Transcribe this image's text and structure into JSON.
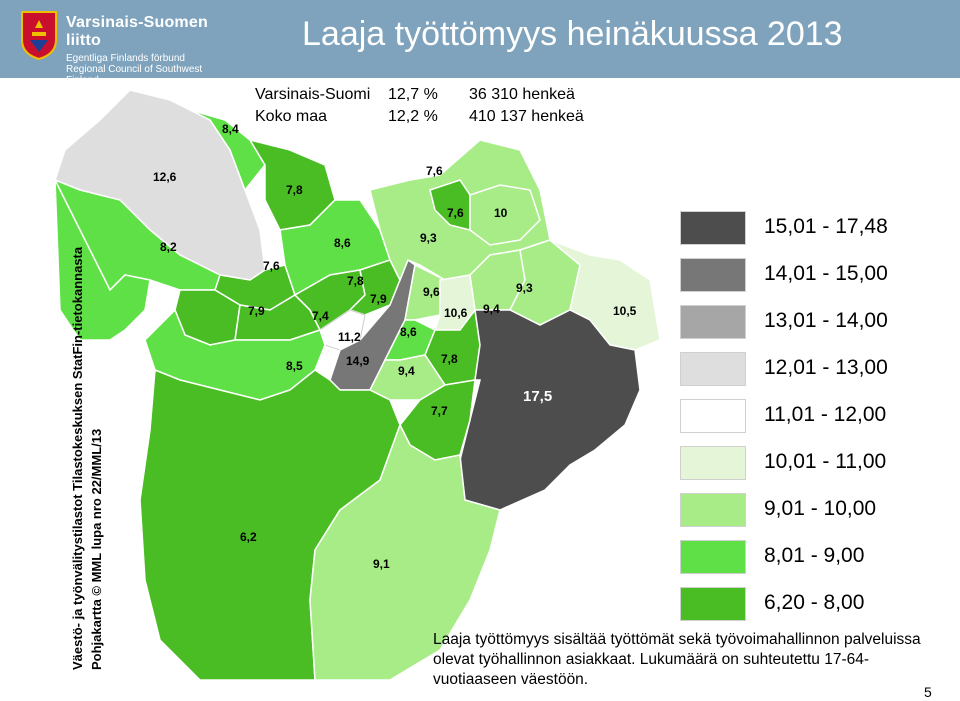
{
  "header": {
    "title": "Laaja työttömyys heinäkuussa 2013",
    "org_name": "Varsinais-Suomen liitto",
    "org_line2": "Egentliga Finlands förbund",
    "org_line3": "Regional Council of Southwest Finland"
  },
  "stats": {
    "rows": [
      {
        "area": "Varsinais-Suomi",
        "rate": "12,7 %",
        "count": "36 310",
        "unit": "henkeä"
      },
      {
        "area": "Koko maa",
        "rate": "12,2 %",
        "count": "410 137",
        "unit": "henkeä"
      }
    ]
  },
  "map": {
    "region_labels": [
      "8,4",
      "12,6",
      "7,8",
      "8,2",
      "7,6",
      "8,6",
      "7,8",
      "7,9",
      "7,9",
      "7,4",
      "11,2",
      "8,5",
      "14,9",
      "7,6",
      "7,6",
      "10",
      "9,3",
      "9,6",
      "10,6",
      "9,4",
      "9,3",
      "8,6",
      "7,8",
      "9,4",
      "10,5",
      "17,5",
      "7,7",
      "6,2",
      "9,1"
    ]
  },
  "legend": [
    {
      "label": "15,01 - 17,48",
      "color": "#4d4d4d"
    },
    {
      "label": "14,01 - 15,00",
      "color": "#777777"
    },
    {
      "label": "13,01 - 14,00",
      "color": "#a6a6a6"
    },
    {
      "label": "12,01 - 13,00",
      "color": "#dedede"
    },
    {
      "label": "11,01 - 12,00",
      "color": "#ffffff"
    },
    {
      "label": "10,01 - 11,00",
      "color": "#e4f5d8"
    },
    {
      "label": "9,01 - 10,00",
      "color": "#a8ec88"
    },
    {
      "label": "8,01 - 9,00",
      "color": "#5fe047"
    },
    {
      "label": "6,20 - 8,00",
      "color": "#4bbd24"
    }
  ],
  "source": {
    "line1": "Väestö- ja työnvälitystilastot Tilastokeskuksen StatFin-tietokannasta",
    "line2": "Pohjakartta © MML lupa nro 22/MML/13"
  },
  "caption": "Laaja työttömyys sisältää työttömät sekä työvoimahallinnon palveluissa olevat työhallinnon asiakkaat. Lukumäärä on suhteutettu 17-64-vuotiaaseen väestöön.",
  "page_number": "5"
}
